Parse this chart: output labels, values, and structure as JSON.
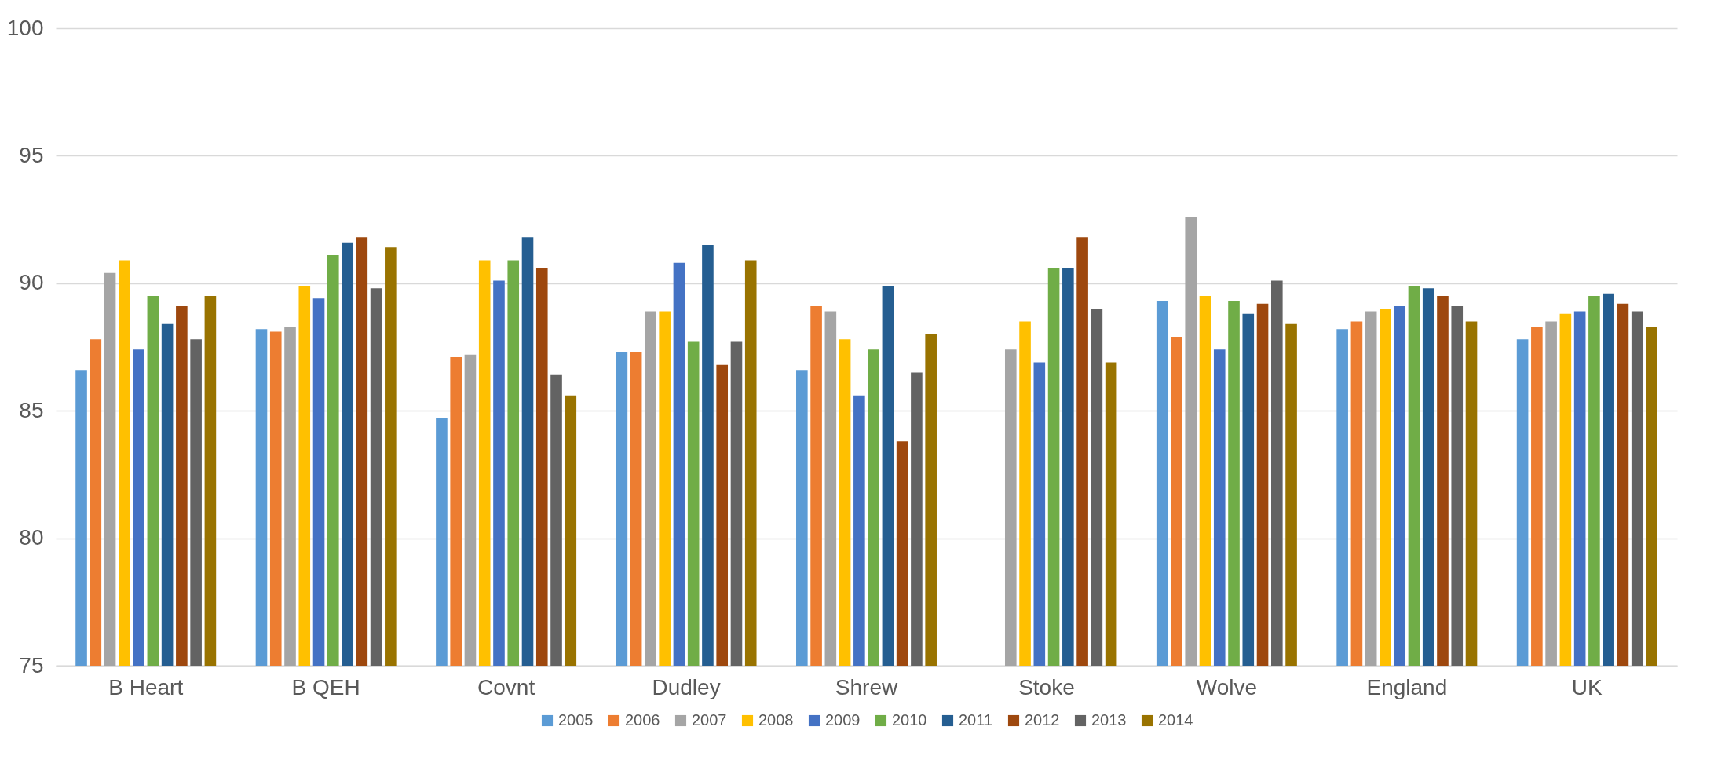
{
  "chart_data": {
    "type": "bar",
    "categories": [
      "B Heart",
      "B QEH",
      "Covnt",
      "Dudley",
      "Shrew",
      "Stoke",
      "Wolve",
      "England",
      "UK"
    ],
    "series": [
      {
        "name": "2005",
        "color": "#5b9bd5",
        "values": [
          86.6,
          88.2,
          84.7,
          87.3,
          86.6,
          null,
          89.3,
          88.2,
          87.8
        ]
      },
      {
        "name": "2006",
        "color": "#ed7d31",
        "values": [
          87.8,
          88.1,
          87.1,
          87.3,
          89.1,
          null,
          87.9,
          88.5,
          88.3
        ]
      },
      {
        "name": "2007",
        "color": "#a5a5a5",
        "values": [
          90.4,
          88.3,
          87.2,
          88.9,
          88.9,
          87.4,
          92.6,
          88.9,
          88.5
        ]
      },
      {
        "name": "2008",
        "color": "#ffc000",
        "values": [
          90.9,
          89.9,
          90.9,
          88.9,
          87.8,
          88.5,
          89.5,
          89.0,
          88.8
        ]
      },
      {
        "name": "2009",
        "color": "#4472c4",
        "values": [
          87.4,
          89.4,
          90.1,
          90.8,
          85.6,
          86.9,
          87.4,
          89.1,
          88.9
        ]
      },
      {
        "name": "2010",
        "color": "#70ad47",
        "values": [
          89.5,
          91.1,
          90.9,
          87.7,
          87.4,
          90.6,
          89.3,
          89.9,
          89.5
        ]
      },
      {
        "name": "2011",
        "color": "#255e91",
        "values": [
          88.4,
          91.6,
          91.8,
          91.5,
          89.9,
          90.6,
          88.8,
          89.8,
          89.6
        ]
      },
      {
        "name": "2012",
        "color": "#9e480e",
        "values": [
          89.1,
          91.8,
          90.6,
          86.8,
          83.8,
          91.8,
          89.2,
          89.5,
          89.2
        ]
      },
      {
        "name": "2013",
        "color": "#636363",
        "values": [
          87.8,
          89.8,
          86.4,
          87.7,
          86.5,
          89.0,
          90.1,
          89.1,
          88.9
        ]
      },
      {
        "name": "2014",
        "color": "#997300",
        "values": [
          89.5,
          91.4,
          85.6,
          90.9,
          88.0,
          86.9,
          88.4,
          88.5,
          88.3
        ]
      }
    ],
    "ylim": [
      75,
      100
    ],
    "yticks": [
      75,
      80,
      85,
      90,
      95,
      100
    ],
    "grid": "y",
    "legend": "bottom"
  }
}
